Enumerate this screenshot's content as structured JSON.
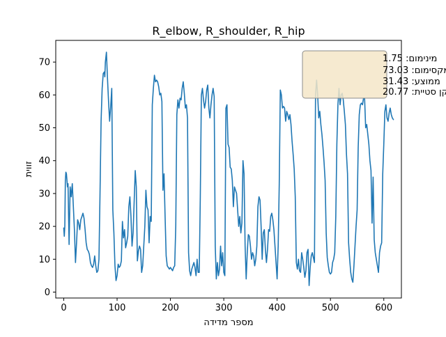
{
  "chart_data": {
    "type": "line",
    "title": "R_elbow, R_shoulder, R_hip",
    "xlabel": "מספר מדידה",
    "ylabel": "זווית",
    "xlim": [
      -15,
      633
    ],
    "ylim": [
      -1.8,
      76.6
    ],
    "xticks": [
      0,
      100,
      200,
      300,
      400,
      500,
      600
    ],
    "yticks": [
      0,
      10,
      20,
      30,
      40,
      50,
      60,
      70
    ],
    "grid": false,
    "line_color": "#1f77b4",
    "stats_box": {
      "placement": "top-right",
      "lines": [
        "מינימום: 1.75",
        "מקסימום: 73.03",
        "ממוצע: 31.43",
        "תקן סטיית: 20.77"
      ],
      "background": "#f5e6c8",
      "border": "#8c8c8c"
    },
    "series": [
      {
        "x": [
          0,
          1,
          2,
          3,
          4,
          5,
          7,
          8,
          10,
          12,
          14,
          16,
          18,
          20,
          22,
          24,
          26,
          28,
          30,
          32,
          34,
          36,
          38,
          40,
          42,
          44,
          46,
          48,
          50,
          52,
          54,
          56,
          58,
          60,
          62,
          64,
          66,
          68,
          70,
          72,
          74,
          76,
          77,
          78,
          79,
          80,
          81,
          82,
          84,
          86,
          88,
          90,
          92,
          94,
          96,
          98,
          100,
          102,
          104,
          106,
          108,
          110,
          112,
          114,
          116,
          118,
          120,
          122,
          124,
          126,
          128,
          130,
          132,
          134,
          136,
          138,
          140,
          142,
          144,
          146,
          148,
          150,
          152,
          154,
          156,
          158,
          160,
          162,
          164,
          166,
          168,
          170,
          172,
          174,
          176,
          178,
          180,
          182,
          184,
          186,
          188,
          190,
          192,
          194,
          196,
          198,
          200,
          202,
          204,
          206,
          208,
          210,
          212,
          214,
          216,
          218,
          220,
          222,
          224,
          226,
          228,
          230,
          232,
          234,
          236,
          238,
          240,
          242,
          244,
          246,
          248,
          250,
          252,
          254,
          256,
          258,
          260,
          262,
          264,
          266,
          268,
          270,
          272,
          274,
          276,
          278,
          280,
          282,
          284,
          286,
          288,
          290,
          292,
          294,
          296,
          298,
          300,
          302,
          304,
          306,
          308,
          310,
          312,
          314,
          316,
          318,
          320,
          322,
          324,
          326,
          328,
          330,
          332,
          334,
          336,
          338,
          340,
          342,
          344,
          346,
          348,
          350,
          352,
          354,
          356,
          358,
          360,
          362,
          364,
          366,
          368,
          370,
          372,
          374,
          376,
          378,
          380,
          382,
          384,
          386,
          388,
          390,
          392,
          394,
          396,
          398,
          400,
          402,
          404,
          406,
          408,
          410,
          412,
          414,
          416,
          418,
          420,
          422,
          424,
          426,
          428,
          430,
          432,
          434,
          436,
          438,
          440,
          442,
          444,
          446,
          448,
          450,
          452,
          454,
          456,
          458,
          460,
          462,
          464,
          466,
          468,
          470,
          472,
          474,
          476,
          478,
          480,
          482,
          484,
          486,
          488,
          490,
          492,
          494,
          496,
          498,
          500,
          502,
          504,
          506,
          508,
          510,
          512,
          514,
          516,
          518,
          520,
          522,
          524,
          526,
          528,
          530,
          532,
          534,
          536,
          538,
          540,
          542,
          544,
          546,
          548,
          550,
          552,
          554,
          556,
          558,
          560,
          562,
          564,
          566,
          568,
          570,
          572,
          574,
          576,
          578,
          580,
          582,
          584,
          586,
          588,
          590,
          592,
          594,
          596,
          598,
          600,
          602,
          604,
          606,
          608,
          610,
          612,
          614,
          616,
          618
        ],
        "y": [
          19.5,
          17.0,
          20.0,
          34.0,
          36.5,
          36.0,
          32.0,
          33.0,
          14.5,
          32.0,
          29.0,
          33.0,
          26.0,
          19.0,
          9.0,
          15.0,
          22.0,
          21.0,
          19.0,
          22.0,
          23.0,
          24.0,
          22.5,
          19.0,
          15.0,
          13.0,
          12.5,
          11.5,
          9.0,
          8.0,
          7.5,
          8.5,
          11.0,
          8.0,
          6.0,
          6.5,
          10.0,
          30.0,
          52.0,
          62.0,
          66.5,
          67.0,
          65.5,
          70.0,
          71.5,
          73.0,
          69.0,
          65.0,
          58.0,
          52.0,
          56.5,
          62.0,
          25.0,
          18.0,
          8.0,
          3.5,
          5.0,
          8.5,
          7.5,
          8.0,
          9.5,
          21.5,
          16.5,
          19.0,
          13.5,
          15.0,
          17.0,
          26.0,
          29.0,
          23.0,
          14.0,
          18.0,
          27.5,
          37.0,
          32.0,
          9.5,
          12.5,
          14.0,
          13.0,
          6.0,
          8.0,
          14.0,
          20.0,
          31.0,
          26.0,
          25.0,
          15.0,
          23.0,
          21.5,
          57.0,
          62.0,
          66.0,
          64.0,
          64.5,
          64.0,
          62.5,
          60.0,
          60.5,
          58.0,
          31.0,
          36.0,
          23.0,
          11.0,
          8.0,
          7.5,
          7.0,
          7.5,
          7.0,
          6.5,
          7.5,
          8.0,
          20.0,
          54.0,
          58.5,
          56.0,
          59.0,
          58.5,
          62.0,
          64.0,
          60.5,
          56.0,
          57.0,
          53.0,
          12.0,
          6.5,
          5.0,
          7.0,
          8.0,
          9.0,
          7.5,
          5.0,
          10.0,
          6.0,
          6.0,
          29.0,
          60.0,
          62.0,
          58.5,
          56.0,
          58.0,
          61.5,
          63.0,
          56.0,
          53.0,
          57.0,
          60.0,
          62.0,
          59.5,
          14.0,
          4.0,
          9.0,
          5.0,
          7.0,
          14.0,
          8.0,
          12.0,
          6.0,
          5.0,
          56.0,
          57.0,
          45.0,
          44.0,
          38.0,
          37.5,
          34.0,
          26.0,
          32.0,
          31.0,
          30.0,
          25.0,
          20.0,
          23.0,
          18.0,
          21.0,
          40.0,
          36.0,
          14.0,
          4.0,
          12.0,
          17.5,
          17.0,
          14.0,
          10.0,
          12.0,
          11.0,
          8.0,
          10.0,
          14.0,
          26.0,
          29.0,
          28.0,
          20.0,
          10.0,
          18.0,
          19.0,
          13.0,
          9.0,
          13.0,
          19.0,
          18.5,
          23.0,
          24.0,
          22.0,
          19.0,
          14.0,
          9.0,
          4.0,
          14.0,
          33.0,
          61.5,
          60.0,
          56.0,
          56.5,
          56.0,
          52.0,
          55.0,
          54.0,
          52.5,
          54.0,
          51.0,
          46.0,
          42.0,
          37.5,
          29.0,
          9.0,
          7.0,
          10.0,
          6.5,
          6.0,
          12.0,
          10.0,
          7.5,
          4.5,
          6.5,
          12.0,
          13.0,
          2.0,
          7.5,
          11.0,
          12.0,
          10.5,
          9.0,
          60.0,
          64.5,
          60.0,
          53.0,
          55.0,
          51.0,
          48.0,
          44.0,
          39.5,
          34.0,
          18.0,
          10.5,
          8.0,
          6.0,
          5.5,
          6.0,
          9.0,
          10.0,
          12.0,
          23.0,
          45.0,
          57.0,
          62.0,
          57.0,
          60.0,
          60.5,
          58.5,
          55.0,
          51.0,
          42.0,
          36.0,
          15.0,
          10.0,
          6.0,
          4.0,
          3.0,
          8.0,
          14.0,
          20.0,
          25.0,
          44.0,
          54.0,
          57.0,
          57.5,
          57.0,
          59.0,
          59.0,
          50.0,
          51.0,
          48.0,
          45.0,
          40.0,
          37.0,
          21.0,
          35.0,
          16.0,
          12.0,
          10.0,
          8.0,
          6.0,
          12.0,
          14.0,
          15.0,
          36.0,
          45.0,
          55.0,
          57.0,
          53.0,
          52.0,
          54.5,
          56.0,
          54.0,
          53.0,
          52.5
        ]
      }
    ]
  }
}
